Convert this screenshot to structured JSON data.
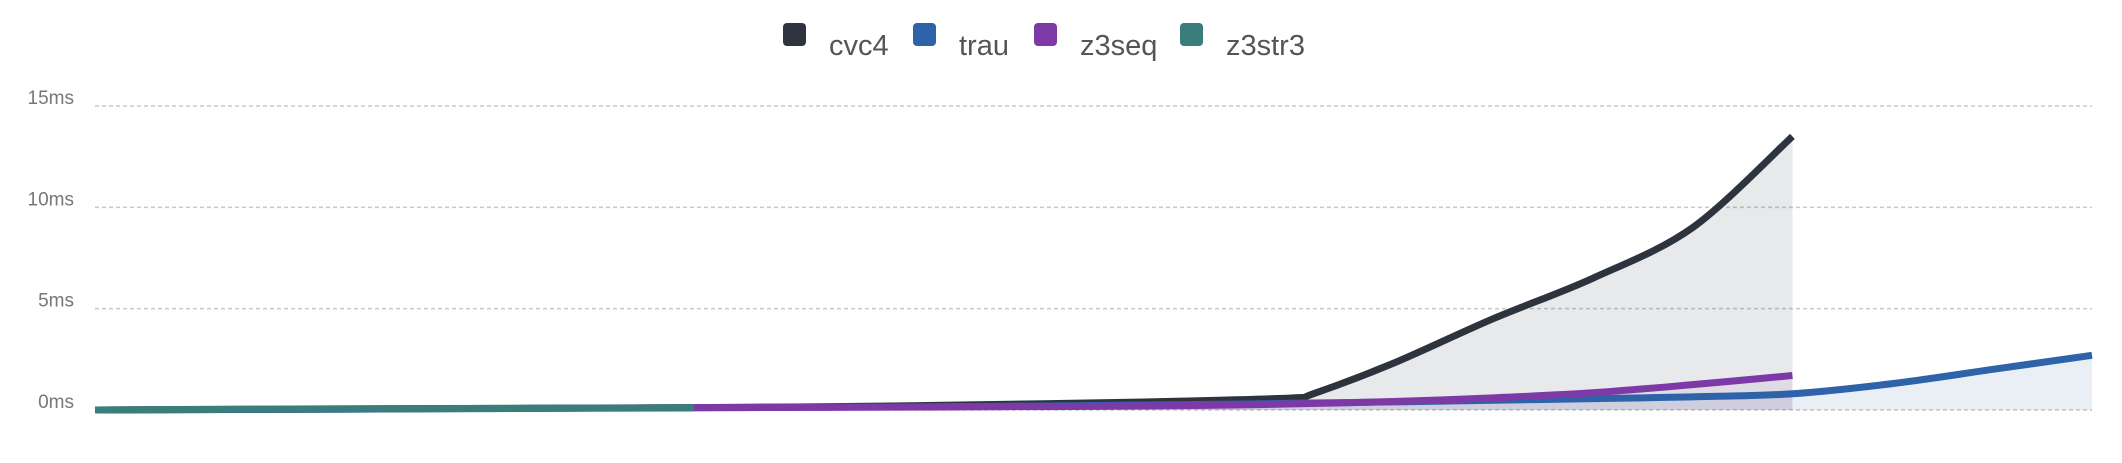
{
  "chart_data": {
    "type": "area",
    "title": "",
    "xlabel": "",
    "ylabel": "",
    "ylim": [
      0,
      15
    ],
    "yunit": "ms",
    "yticks": [
      "0ms",
      "5ms",
      "10ms",
      "15ms"
    ],
    "grid": true,
    "legend_position": "top-center",
    "x_range": [
      0,
      20
    ],
    "series": [
      {
        "name": "cvc4",
        "color": "#2d343d",
        "x": [
          0,
          1,
          2,
          3,
          4,
          5,
          6,
          7,
          8,
          9,
          10,
          11,
          12,
          12.2,
          13,
          14,
          15,
          16,
          17
        ],
        "values": [
          0.0,
          0.02,
          0.04,
          0.06,
          0.08,
          0.1,
          0.12,
          0.15,
          0.2,
          0.27,
          0.35,
          0.45,
          0.6,
          0.8,
          2.3,
          4.5,
          6.5,
          9.0,
          13.5
        ]
      },
      {
        "name": "trau",
        "color": "#2e62a9",
        "x": [
          0,
          1,
          2,
          3,
          4,
          5,
          6,
          7,
          8,
          9,
          10,
          11,
          12,
          13,
          14,
          15,
          16,
          17,
          18,
          19,
          20
        ],
        "values": [
          0.0,
          0.02,
          0.03,
          0.05,
          0.07,
          0.09,
          0.11,
          0.13,
          0.15,
          0.18,
          0.22,
          0.27,
          0.33,
          0.4,
          0.48,
          0.56,
          0.65,
          0.8,
          1.3,
          2.0,
          2.7
        ]
      },
      {
        "name": "z3seq",
        "color": "#7d3aa6",
        "x": [
          6,
          7,
          8,
          9,
          10,
          11,
          12,
          13,
          14,
          15,
          16,
          17
        ],
        "values": [
          0.12,
          0.13,
          0.14,
          0.16,
          0.18,
          0.22,
          0.3,
          0.42,
          0.6,
          0.85,
          1.25,
          1.7
        ]
      },
      {
        "name": "z3str3",
        "color": "#3a7d7a",
        "x": [
          0,
          1,
          2,
          3,
          4,
          5,
          6
        ],
        "values": [
          0.0,
          0.03,
          0.05,
          0.07,
          0.08,
          0.09,
          0.1
        ]
      }
    ]
  }
}
